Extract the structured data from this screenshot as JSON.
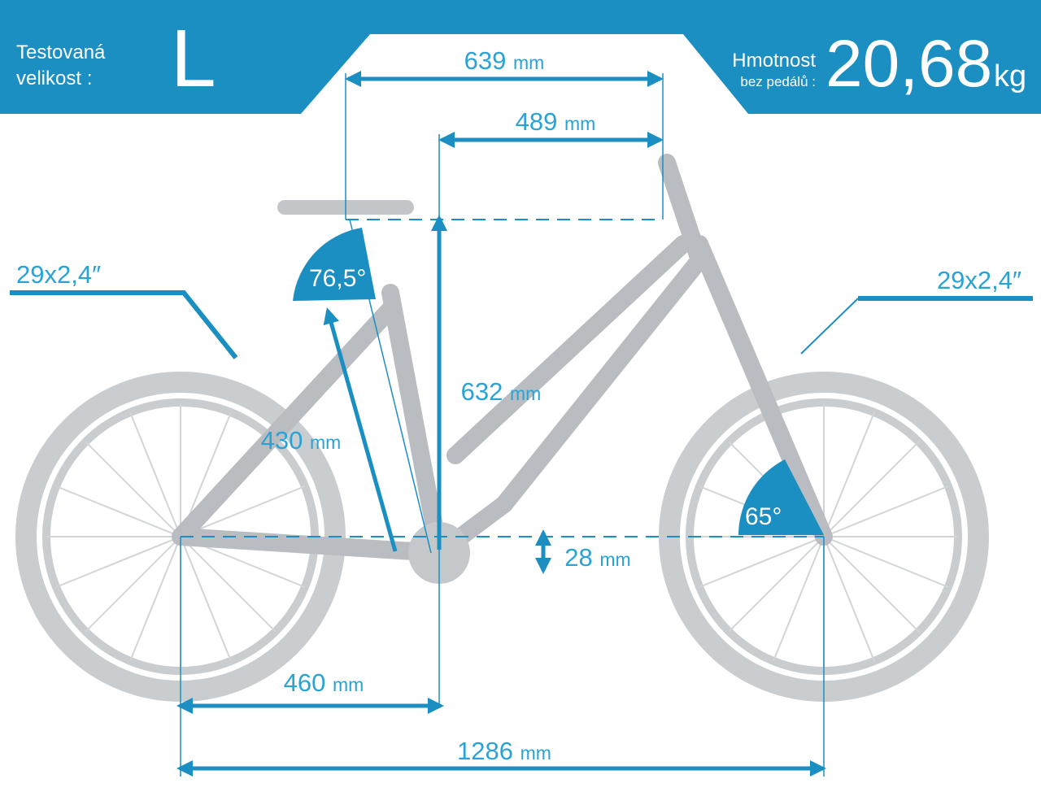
{
  "header": {
    "size_label": [
      "Testovaná",
      "velikost :"
    ],
    "size": "L",
    "weight_label": "Hmotnost",
    "weight_note": "bez pedálů :",
    "weight": "20,68",
    "weight_unit": "kg"
  },
  "tires": {
    "rear": "29x2,4″",
    "front": "29x2,4″"
  },
  "dimensions": {
    "reach_total": {
      "value": "639",
      "unit": "mm"
    },
    "reach": {
      "value": "489",
      "unit": "mm"
    },
    "stack": {
      "value": "632",
      "unit": "mm"
    },
    "seat_tube": {
      "value": "430",
      "unit": "mm"
    },
    "chainstay": {
      "value": "460",
      "unit": "mm"
    },
    "wheelbase": {
      "value": "1286",
      "unit": "mm"
    },
    "bb_drop": {
      "value": "28",
      "unit": "mm"
    }
  },
  "angles": {
    "seat": "76,5°",
    "head": "65°"
  }
}
